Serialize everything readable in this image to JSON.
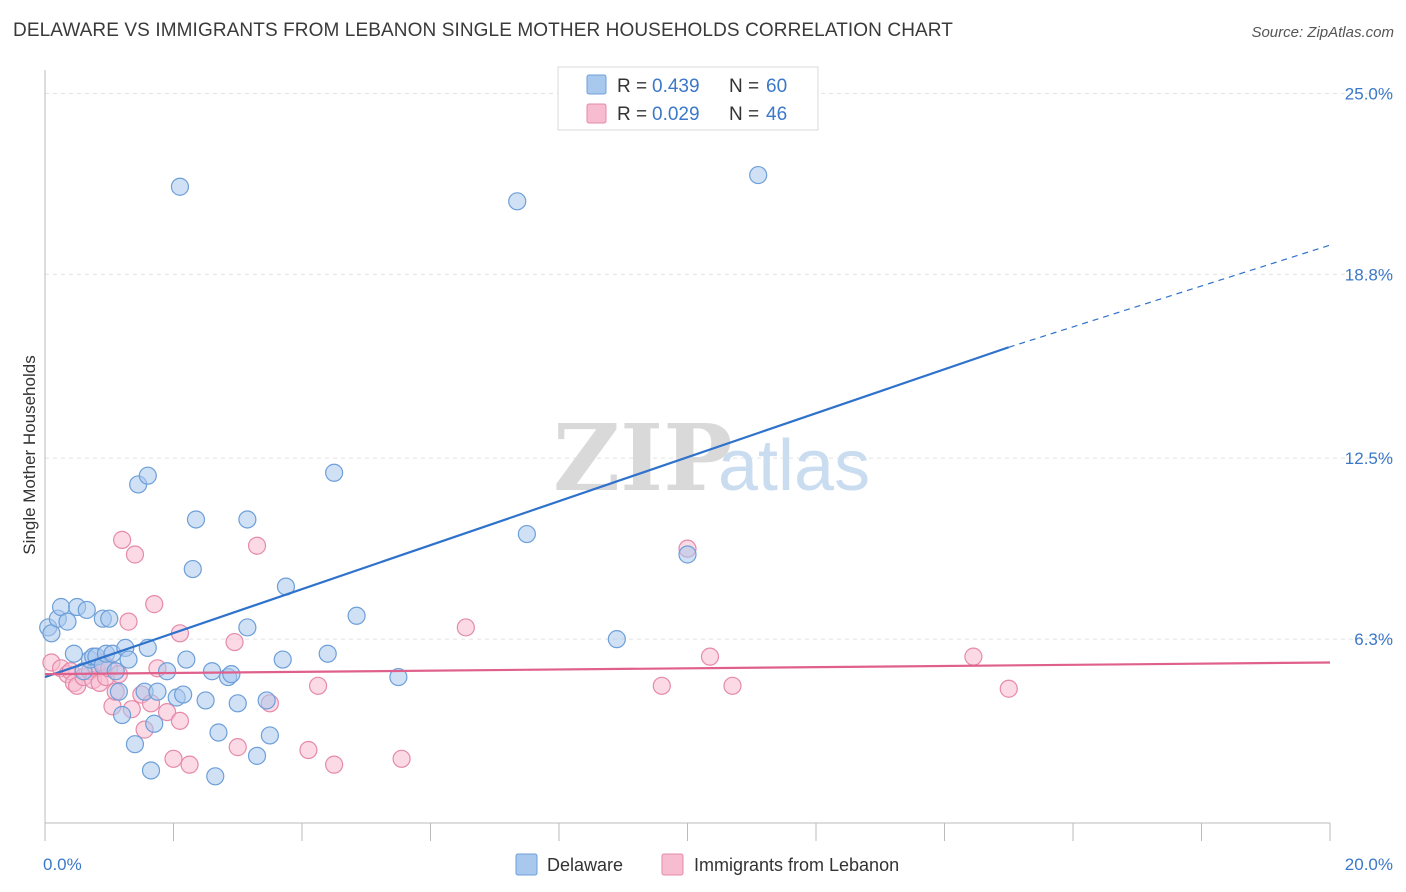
{
  "title": "DELAWARE VS IMMIGRANTS FROM LEBANON SINGLE MOTHER HOUSEHOLDS CORRELATION CHART",
  "source": "Source: ZipAtlas.com",
  "watermark": {
    "zip": "ZIP",
    "atlas": "atlas"
  },
  "legend": {
    "rows": [
      {
        "r_label": "R =",
        "r_value": "0.439",
        "n_label": "N =",
        "n_value": "60"
      },
      {
        "r_label": "R =",
        "r_value": "0.029",
        "n_label": "N =",
        "n_value": "46"
      }
    ]
  },
  "bottom_legend": [
    "Delaware",
    "Immigrants from Lebanon"
  ],
  "chart_data": {
    "type": "scatter",
    "ylabel": "Single Mother Households",
    "xlim": [
      0,
      20
    ],
    "ylim": [
      0,
      25.8
    ],
    "y_ticks": [
      {
        "value": 6.3,
        "label": "6.3%"
      },
      {
        "value": 12.5,
        "label": "12.5%"
      },
      {
        "value": 18.8,
        "label": "18.8%"
      },
      {
        "value": 25.0,
        "label": "25.0%"
      }
    ],
    "x_tick_labels": [
      {
        "value": 0,
        "label": "0.0%"
      },
      {
        "value": 20,
        "label": "20.0%"
      }
    ],
    "colors": {
      "delaware": "#a9c8ee",
      "delaware_stroke": "#6d9fd8",
      "lebanon": "#f7bcd0",
      "lebanon_stroke": "#e58aaa",
      "delaware_line": "#2e72cc",
      "lebanon_line": "#e0608c"
    },
    "series": [
      {
        "name": "Delaware",
        "trend": {
          "x0": 0,
          "y0": 5.0,
          "x1": 15.0,
          "y1": 16.3,
          "dash_to_x": 20.0,
          "dash_to_y": 19.8
        },
        "points": [
          [
            0.05,
            6.7
          ],
          [
            0.1,
            6.5
          ],
          [
            0.2,
            7.0
          ],
          [
            0.25,
            7.4
          ],
          [
            0.35,
            6.9
          ],
          [
            0.45,
            5.8
          ],
          [
            0.5,
            7.4
          ],
          [
            0.6,
            5.2
          ],
          [
            0.65,
            7.3
          ],
          [
            0.7,
            5.6
          ],
          [
            0.75,
            5.7
          ],
          [
            0.8,
            5.7
          ],
          [
            0.9,
            5.4
          ],
          [
            0.9,
            7.0
          ],
          [
            0.95,
            5.8
          ],
          [
            1.0,
            7.0
          ],
          [
            1.05,
            5.8
          ],
          [
            1.1,
            5.2
          ],
          [
            1.15,
            4.5
          ],
          [
            1.2,
            3.7
          ],
          [
            1.25,
            6.0
          ],
          [
            1.3,
            5.6
          ],
          [
            1.4,
            2.7
          ],
          [
            1.45,
            11.6
          ],
          [
            1.55,
            4.5
          ],
          [
            1.6,
            6.0
          ],
          [
            1.6,
            11.9
          ],
          [
            1.65,
            1.8
          ],
          [
            1.7,
            3.4
          ],
          [
            1.75,
            4.5
          ],
          [
            1.9,
            5.2
          ],
          [
            2.05,
            4.3
          ],
          [
            2.1,
            21.8
          ],
          [
            2.15,
            4.4
          ],
          [
            2.2,
            5.6
          ],
          [
            2.3,
            8.7
          ],
          [
            2.35,
            10.4
          ],
          [
            2.5,
            4.2
          ],
          [
            2.6,
            5.2
          ],
          [
            2.65,
            1.6
          ],
          [
            2.7,
            3.1
          ],
          [
            2.85,
            5.0
          ],
          [
            2.9,
            5.1
          ],
          [
            3.0,
            4.1
          ],
          [
            3.15,
            6.7
          ],
          [
            3.15,
            10.4
          ],
          [
            3.3,
            2.3
          ],
          [
            3.45,
            4.2
          ],
          [
            3.5,
            3.0
          ],
          [
            3.7,
            5.6
          ],
          [
            3.75,
            8.1
          ],
          [
            4.4,
            5.8
          ],
          [
            4.5,
            12.0
          ],
          [
            4.85,
            7.1
          ],
          [
            5.5,
            5.0
          ],
          [
            7.35,
            21.3
          ],
          [
            7.5,
            9.9
          ],
          [
            8.9,
            6.3
          ],
          [
            10.0,
            9.2
          ],
          [
            11.1,
            22.2
          ]
        ]
      },
      {
        "name": "Immigrants from Lebanon",
        "trend": {
          "x0": 0,
          "y0": 5.1,
          "x1": 20.0,
          "y1": 5.5
        },
        "points": [
          [
            0.1,
            5.5
          ],
          [
            0.25,
            5.3
          ],
          [
            0.35,
            5.1
          ],
          [
            0.4,
            5.2
          ],
          [
            0.45,
            4.8
          ],
          [
            0.5,
            4.7
          ],
          [
            0.6,
            5.0
          ],
          [
            0.7,
            5.2
          ],
          [
            0.75,
            4.9
          ],
          [
            0.8,
            5.3
          ],
          [
            0.85,
            4.8
          ],
          [
            0.9,
            5.5
          ],
          [
            0.95,
            5.0
          ],
          [
            1.0,
            5.3
          ],
          [
            1.05,
            4.0
          ],
          [
            1.1,
            4.5
          ],
          [
            1.15,
            5.1
          ],
          [
            1.2,
            9.7
          ],
          [
            1.3,
            6.9
          ],
          [
            1.35,
            3.9
          ],
          [
            1.4,
            9.2
          ],
          [
            1.5,
            4.4
          ],
          [
            1.55,
            3.2
          ],
          [
            1.65,
            4.1
          ],
          [
            1.7,
            7.5
          ],
          [
            1.75,
            5.3
          ],
          [
            1.9,
            3.8
          ],
          [
            2.0,
            2.2
          ],
          [
            2.1,
            3.5
          ],
          [
            2.1,
            6.5
          ],
          [
            2.25,
            2.0
          ],
          [
            2.95,
            6.2
          ],
          [
            3.0,
            2.6
          ],
          [
            3.3,
            9.5
          ],
          [
            3.5,
            4.1
          ],
          [
            4.1,
            2.5
          ],
          [
            4.25,
            4.7
          ],
          [
            4.5,
            2.0
          ],
          [
            5.55,
            2.2
          ],
          [
            6.55,
            6.7
          ],
          [
            9.6,
            4.7
          ],
          [
            10.0,
            9.4
          ],
          [
            10.35,
            5.7
          ],
          [
            10.7,
            4.7
          ],
          [
            14.45,
            5.7
          ],
          [
            15.0,
            4.6
          ]
        ]
      }
    ]
  }
}
